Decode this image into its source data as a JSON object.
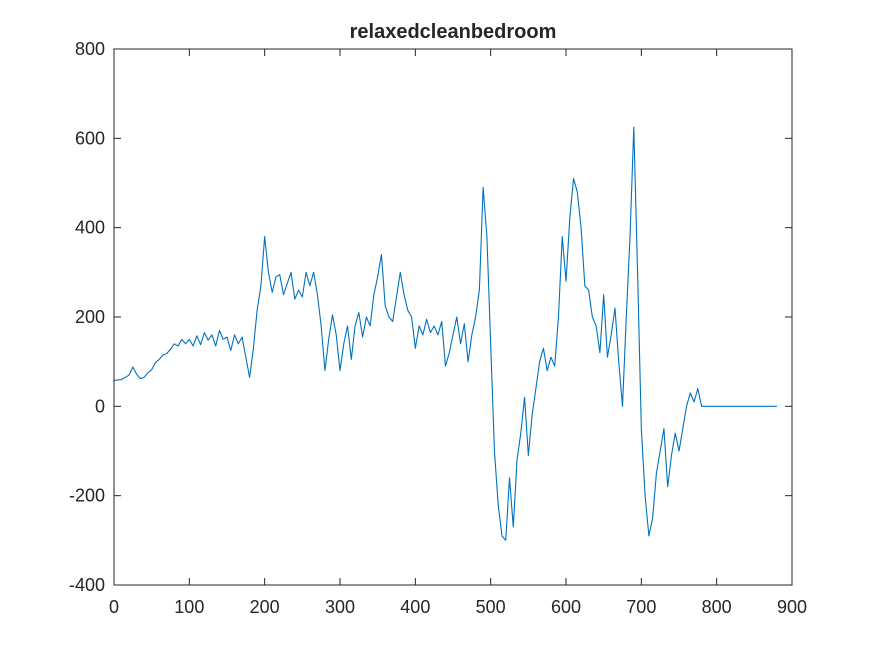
{
  "chart_data": {
    "type": "line",
    "title": "relaxedcleanbedroom",
    "xlabel": "",
    "ylabel": "",
    "xlim": [
      0,
      900
    ],
    "ylim": [
      -400,
      800
    ],
    "xticks": [
      0,
      100,
      200,
      300,
      400,
      500,
      600,
      700,
      800,
      900
    ],
    "yticks": [
      -400,
      -200,
      0,
      200,
      400,
      600,
      800
    ],
    "xtick_labels": [
      "0",
      "100",
      "200",
      "300",
      "400",
      "500",
      "600",
      "700",
      "800",
      "900"
    ],
    "ytick_labels": [
      "-400",
      "-200",
      "0",
      "200",
      "400",
      "600",
      "800"
    ],
    "grid": false,
    "series": [
      {
        "name": "relaxedcleanbedroom",
        "color": "#0072BD",
        "x": [
          0,
          10,
          20,
          25,
          30,
          35,
          40,
          45,
          50,
          55,
          60,
          65,
          70,
          75,
          80,
          85,
          90,
          95,
          100,
          105,
          110,
          115,
          120,
          125,
          130,
          135,
          140,
          145,
          150,
          155,
          160,
          165,
          170,
          175,
          180,
          185,
          190,
          195,
          200,
          205,
          210,
          215,
          220,
          225,
          230,
          235,
          240,
          245,
          250,
          255,
          260,
          265,
          270,
          275,
          280,
          285,
          290,
          295,
          300,
          305,
          310,
          315,
          320,
          325,
          330,
          335,
          340,
          345,
          350,
          355,
          360,
          365,
          370,
          375,
          380,
          385,
          390,
          395,
          400,
          405,
          410,
          415,
          420,
          425,
          430,
          435,
          440,
          445,
          450,
          455,
          460,
          465,
          470,
          475,
          480,
          485,
          490,
          495,
          500,
          505,
          510,
          515,
          520,
          525,
          530,
          535,
          540,
          545,
          550,
          555,
          560,
          565,
          570,
          575,
          580,
          585,
          590,
          595,
          600,
          605,
          610,
          615,
          620,
          625,
          630,
          635,
          640,
          645,
          650,
          655,
          660,
          665,
          670,
          675,
          680,
          685,
          690,
          695,
          700,
          705,
          710,
          715,
          720,
          725,
          730,
          735,
          740,
          745,
          750,
          755,
          760,
          765,
          770,
          775,
          780,
          790,
          880
        ],
        "y": [
          58,
          60,
          70,
          88,
          72,
          62,
          65,
          75,
          82,
          98,
          105,
          115,
          118,
          128,
          140,
          135,
          150,
          140,
          150,
          135,
          158,
          138,
          165,
          148,
          160,
          135,
          170,
          150,
          155,
          125,
          160,
          140,
          155,
          110,
          65,
          130,
          215,
          270,
          380,
          300,
          255,
          290,
          295,
          250,
          275,
          300,
          240,
          260,
          245,
          300,
          270,
          300,
          250,
          180,
          80,
          150,
          205,
          160,
          80,
          140,
          180,
          105,
          180,
          210,
          155,
          200,
          180,
          250,
          290,
          340,
          225,
          200,
          190,
          245,
          300,
          250,
          215,
          200,
          130,
          180,
          160,
          195,
          165,
          180,
          160,
          190,
          90,
          120,
          160,
          200,
          140,
          185,
          100,
          160,
          200,
          260,
          490,
          380,
          140,
          -100,
          -220,
          -290,
          -300,
          -160,
          -270,
          -120,
          -60,
          20,
          -110,
          -20,
          40,
          100,
          130,
          80,
          110,
          90,
          200,
          380,
          280,
          420,
          510,
          480,
          400,
          270,
          260,
          200,
          180,
          120,
          250,
          110,
          160,
          220,
          100,
          0,
          200,
          380,
          625,
          300,
          -50,
          -200,
          -290,
          -250,
          -150,
          -100,
          -50,
          -180,
          -110,
          -60,
          -100,
          -50,
          0,
          30,
          10,
          40,
          0,
          0,
          0
        ]
      }
    ]
  }
}
